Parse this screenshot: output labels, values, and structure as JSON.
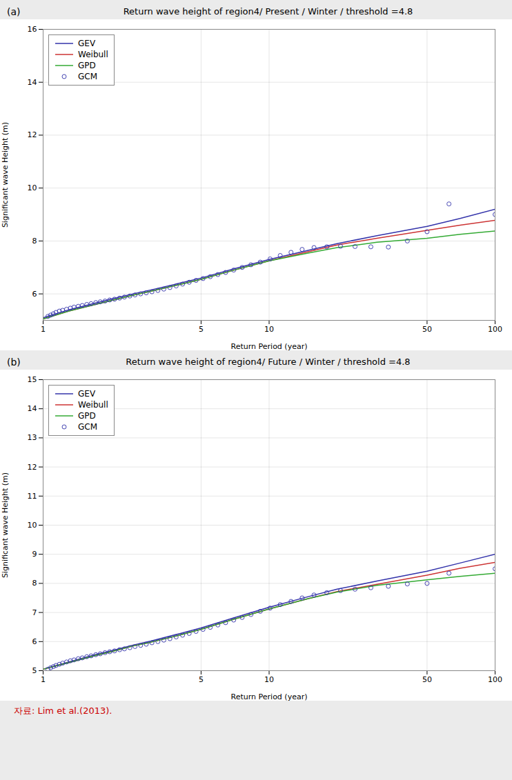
{
  "chart_data": [
    {
      "type": "line",
      "title": "Return wave height of region4/ Present / Winter / threshold =4.8",
      "x_label": "Return Period (year)",
      "y_label": "Significant wave Height (m)",
      "annotations": [
        "(a)"
      ],
      "log": "x",
      "grid": true,
      "legend": "upper left",
      "xlim": [
        1,
        100
      ],
      "xticks": [
        1,
        5,
        10,
        50,
        100
      ],
      "ylim": [
        5,
        16
      ],
      "yticks": [
        6,
        8,
        10,
        12,
        14,
        16
      ],
      "series": [
        {
          "name": "GEV",
          "type": "line",
          "color": "#3333aa",
          "x": [
            1,
            1.3,
            1.7,
            2.0,
            2.5,
            3,
            4,
            5,
            7,
            10,
            15,
            20,
            30,
            50,
            70,
            100
          ],
          "values": [
            5.1,
            5.4,
            5.65,
            5.8,
            6.0,
            6.15,
            6.4,
            6.6,
            6.95,
            7.3,
            7.65,
            7.9,
            8.2,
            8.55,
            8.85,
            9.2
          ]
        },
        {
          "name": "Weibull",
          "type": "line",
          "color": "#cc3333",
          "x": [
            1,
            1.3,
            1.7,
            2.0,
            2.5,
            3,
            4,
            5,
            7,
            10,
            15,
            20,
            30,
            50,
            70,
            100
          ],
          "values": [
            5.05,
            5.35,
            5.6,
            5.75,
            5.95,
            6.1,
            6.35,
            6.55,
            6.9,
            7.25,
            7.6,
            7.85,
            8.1,
            8.4,
            8.6,
            8.78
          ]
        },
        {
          "name": "GPD",
          "type": "line",
          "color": "#33aa33",
          "x": [
            1,
            1.3,
            1.7,
            2.0,
            2.5,
            3,
            4,
            5,
            7,
            10,
            15,
            20,
            30,
            50,
            70,
            100
          ],
          "values": [
            5.05,
            5.35,
            5.6,
            5.75,
            5.95,
            6.1,
            6.35,
            6.55,
            6.9,
            7.25,
            7.55,
            7.75,
            7.95,
            8.1,
            8.25,
            8.38
          ]
        },
        {
          "name": "GCM",
          "type": "scatter",
          "marker": "o",
          "color": "#3333aa",
          "x": [
            1.05,
            1.08,
            1.11,
            1.14,
            1.18,
            1.22,
            1.27,
            1.32,
            1.37,
            1.43,
            1.49,
            1.56,
            1.63,
            1.71,
            1.79,
            1.88,
            1.97,
            2.07,
            2.18,
            2.29,
            2.42,
            2.55,
            2.7,
            2.86,
            3.03,
            3.22,
            3.42,
            3.64,
            3.88,
            4.14,
            4.43,
            4.75,
            5.1,
            5.49,
            5.93,
            6.42,
            6.97,
            7.6,
            8.31,
            9.14,
            10.1,
            11.2,
            12.5,
            14.0,
            15.8,
            18.0,
            20.7,
            24.0,
            28.2,
            33.7,
            40.9,
            50.0,
            62.5,
            100.0
          ],
          "values": [
            5.15,
            5.2,
            5.25,
            5.3,
            5.35,
            5.38,
            5.42,
            5.46,
            5.5,
            5.53,
            5.56,
            5.6,
            5.63,
            5.67,
            5.7,
            5.73,
            5.77,
            5.8,
            5.84,
            5.88,
            5.92,
            5.96,
            6.0,
            6.04,
            6.08,
            6.13,
            6.18,
            6.24,
            6.3,
            6.37,
            6.44,
            6.51,
            6.58,
            6.65,
            6.73,
            6.81,
            6.9,
            7.0,
            7.1,
            7.2,
            7.32,
            7.45,
            7.57,
            7.68,
            7.75,
            7.78,
            7.8,
            7.79,
            7.78,
            7.77,
            8.0,
            8.35,
            9.4,
            9.0
          ]
        }
      ]
    },
    {
      "type": "line",
      "title": "Return wave height of region4/ Future / Winter / threshold =4.8",
      "x_label": "Return Period (year)",
      "y_label": "Significant wave Height (m)",
      "annotations": [
        "(b)",
        "자료: Lim et al.(2013)."
      ],
      "log": "x",
      "grid": true,
      "legend": "upper left",
      "xlim": [
        1,
        100
      ],
      "xticks": [
        1,
        5,
        10,
        50,
        100
      ],
      "ylim": [
        5,
        15
      ],
      "yticks": [
        5,
        6,
        7,
        8,
        9,
        10,
        11,
        12,
        13,
        14,
        15
      ],
      "series": [
        {
          "name": "GEV",
          "type": "line",
          "color": "#3333aa",
          "x": [
            1,
            1.3,
            1.7,
            2.0,
            2.5,
            3,
            4,
            5,
            7,
            10,
            15,
            20,
            30,
            50,
            70,
            100
          ],
          "values": [
            5.05,
            5.3,
            5.55,
            5.68,
            5.88,
            6.02,
            6.27,
            6.47,
            6.82,
            7.18,
            7.55,
            7.8,
            8.08,
            8.42,
            8.7,
            9.0
          ]
        },
        {
          "name": "Weibull",
          "type": "line",
          "color": "#cc3333",
          "x": [
            1,
            1.3,
            1.7,
            2.0,
            2.5,
            3,
            4,
            5,
            7,
            10,
            15,
            20,
            30,
            50,
            70,
            100
          ],
          "values": [
            5.05,
            5.28,
            5.52,
            5.65,
            5.85,
            5.98,
            6.22,
            6.42,
            6.77,
            7.12,
            7.48,
            7.72,
            7.97,
            8.28,
            8.52,
            8.72
          ]
        },
        {
          "name": "GPD",
          "type": "line",
          "color": "#33aa33",
          "x": [
            1,
            1.3,
            1.7,
            2.0,
            2.5,
            3,
            4,
            5,
            7,
            10,
            15,
            20,
            30,
            50,
            70,
            100
          ],
          "values": [
            5.05,
            5.28,
            5.52,
            5.65,
            5.85,
            5.98,
            6.22,
            6.42,
            6.77,
            7.12,
            7.48,
            7.7,
            7.93,
            8.12,
            8.24,
            8.35
          ]
        },
        {
          "name": "GCM",
          "type": "scatter",
          "marker": "o",
          "color": "#3333aa",
          "x": [
            1.05,
            1.08,
            1.11,
            1.14,
            1.18,
            1.22,
            1.27,
            1.32,
            1.37,
            1.43,
            1.49,
            1.56,
            1.63,
            1.71,
            1.79,
            1.88,
            1.97,
            2.07,
            2.18,
            2.29,
            2.42,
            2.55,
            2.7,
            2.86,
            3.03,
            3.22,
            3.42,
            3.64,
            3.88,
            4.14,
            4.43,
            4.75,
            5.1,
            5.49,
            5.93,
            6.42,
            6.97,
            7.6,
            8.31,
            9.14,
            10.1,
            11.2,
            12.5,
            14.0,
            15.8,
            18.0,
            20.7,
            24.0,
            28.2,
            33.7,
            40.9,
            50.0,
            62.5,
            100.0
          ],
          "values": [
            5.05,
            5.1,
            5.14,
            5.18,
            5.22,
            5.26,
            5.3,
            5.34,
            5.37,
            5.41,
            5.44,
            5.48,
            5.51,
            5.55,
            5.58,
            5.62,
            5.65,
            5.68,
            5.72,
            5.75,
            5.79,
            5.83,
            5.87,
            5.91,
            5.96,
            6.0,
            6.05,
            6.1,
            6.16,
            6.22,
            6.28,
            6.35,
            6.42,
            6.49,
            6.57,
            6.65,
            6.74,
            6.83,
            6.93,
            7.04,
            7.15,
            7.27,
            7.38,
            7.5,
            7.6,
            7.68,
            7.75,
            7.8,
            7.85,
            7.9,
            7.98,
            8.0,
            8.35,
            8.5
          ]
        }
      ]
    }
  ]
}
